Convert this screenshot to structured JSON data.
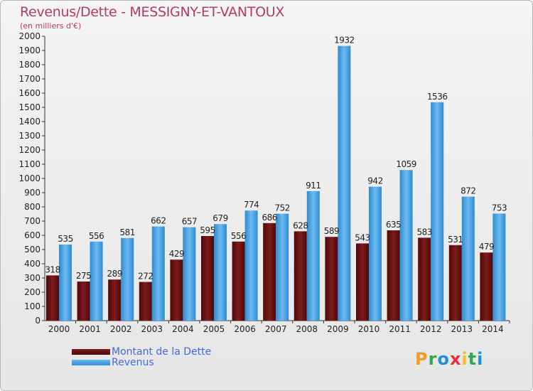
{
  "title": "Revenus/Dette - MESSIGNY-ET-VANTOUX",
  "subtitle": "(en milliers d'€)",
  "legend": {
    "dette": "Montant de la Dette",
    "revenus": "Revenus"
  },
  "logo": {
    "letters": [
      "P",
      "r",
      "o",
      "x",
      "i",
      "t",
      "i"
    ],
    "colors": [
      "#f29b1f",
      "#2fa84f",
      "#1f8fd6",
      "#e8303a",
      "#f2c21f",
      "#2fa84f",
      "#1f8fd6"
    ]
  },
  "colors": {
    "dette": "#6b1414",
    "revenus": "#3d9be0",
    "title": "#b5386e",
    "legend_text": "#4169e1"
  },
  "chart_data": {
    "type": "bar",
    "title": "Revenus/Dette - MESSIGNY-ET-VANTOUX",
    "subtitle": "(en milliers d'€)",
    "categories": [
      "2000",
      "2001",
      "2002",
      "2003",
      "2004",
      "2005",
      "2006",
      "2007",
      "2008",
      "2009",
      "2010",
      "2011",
      "2012",
      "2013",
      "2014"
    ],
    "series": [
      {
        "name": "Montant de la Dette",
        "values": [
          318,
          275,
          289,
          272,
          429,
          595,
          556,
          686,
          628,
          589,
          543,
          635,
          583,
          531,
          479
        ]
      },
      {
        "name": "Revenus",
        "values": [
          535,
          556,
          581,
          662,
          657,
          679,
          774,
          752,
          911,
          1932,
          942,
          1059,
          1536,
          872,
          753
        ]
      }
    ],
    "ylim": [
      0,
      2000
    ],
    "ytick_step": 100,
    "grid": false,
    "legend_position": "bottom-left"
  }
}
